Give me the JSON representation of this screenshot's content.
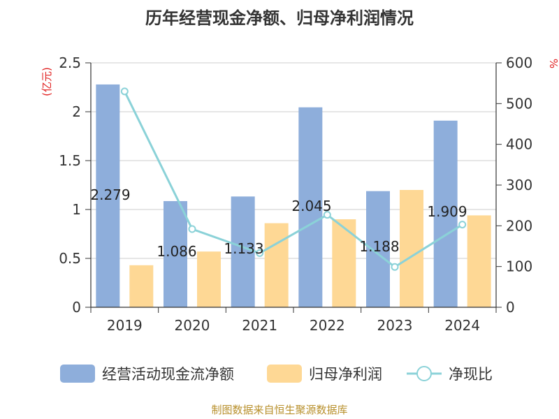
{
  "chart_data": {
    "type": "bar",
    "title": "历年经营现金净额、归母净利润情况",
    "categories": [
      "2019",
      "2020",
      "2021",
      "2022",
      "2023",
      "2024"
    ],
    "series": [
      {
        "name": "经营活动现金流净额",
        "kind": "bar",
        "axis": "left",
        "color": "#8eaedb",
        "values": [
          2.279,
          1.086,
          1.133,
          2.045,
          1.188,
          1.909
        ]
      },
      {
        "name": "归母净利润",
        "kind": "bar",
        "axis": "left",
        "color": "#fed895",
        "values": [
          0.43,
          0.57,
          0.86,
          0.9,
          1.2,
          0.94
        ]
      },
      {
        "name": "净现比",
        "kind": "line",
        "axis": "right",
        "color": "#8bd2d8",
        "values": [
          530,
          192,
          133,
          227,
          99,
          203
        ]
      }
    ],
    "data_labels": [
      "2.279",
      "1.086",
      "1.133",
      "2.045",
      "1.188",
      "1.909"
    ],
    "y_left": {
      "label": "(亿元)",
      "ylim": [
        0,
        2.5
      ],
      "ticks": [
        "0",
        "0.5",
        "1",
        "1.5",
        "2",
        "2.5"
      ]
    },
    "y_right": {
      "label": "%",
      "ylim": [
        0,
        600
      ],
      "ticks": [
        "0",
        "100",
        "200",
        "300",
        "400",
        "500",
        "600"
      ]
    },
    "grid": true,
    "legend_position": "bottom",
    "source": "制图数据来自恒生聚源数据库",
    "colors": {
      "label_red": "#e02020",
      "grid": "#cccccc",
      "axis": "#333333",
      "source": "#b8902c"
    }
  }
}
